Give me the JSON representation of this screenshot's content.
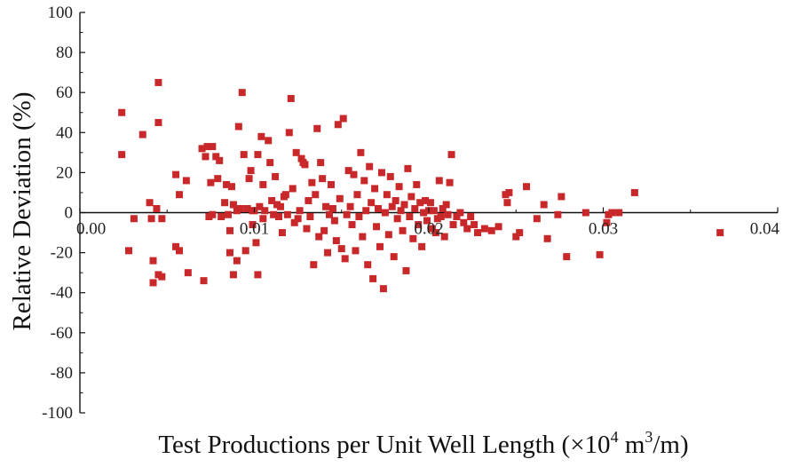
{
  "chart_data": {
    "type": "scatter",
    "title": "",
    "xlabel": {
      "text": "Test Productions per Unit Well Length (×10",
      "sup1": "4",
      "mid": " m",
      "sup2": "3",
      "end": "/m)"
    },
    "ylabel": "Relative Deviation (%)",
    "xlim": [
      0,
      0.04
    ],
    "ylim": [
      -100,
      100
    ],
    "xticks": [
      "0.00",
      "0.01",
      "0.02",
      "0.03",
      "0.04"
    ],
    "yticks": [
      "100",
      "80",
      "60",
      "40",
      "20",
      "0",
      "-20",
      "-40",
      "-60",
      "-80",
      "-100"
    ],
    "grid": false,
    "reference_line": 0,
    "marker_color": "#c8282a",
    "points": [
      [
        0.0024,
        50
      ],
      [
        0.0024,
        29
      ],
      [
        0.0028,
        -19
      ],
      [
        0.0031,
        -3
      ],
      [
        0.0036,
        39
      ],
      [
        0.004,
        5
      ],
      [
        0.0041,
        -3
      ],
      [
        0.0042,
        -24
      ],
      [
        0.0042,
        -35
      ],
      [
        0.0044,
        2
      ],
      [
        0.0045,
        65
      ],
      [
        0.0045,
        45
      ],
      [
        0.0045,
        -31
      ],
      [
        0.0047,
        -32
      ],
      [
        0.0047,
        -3
      ],
      [
        0.0055,
        19
      ],
      [
        0.0055,
        -17
      ],
      [
        0.0057,
        -19
      ],
      [
        0.0057,
        9
      ],
      [
        0.0061,
        16
      ],
      [
        0.0062,
        -30
      ],
      [
        0.007,
        32
      ],
      [
        0.0071,
        -34
      ],
      [
        0.0072,
        28
      ],
      [
        0.0073,
        33
      ],
      [
        0.0074,
        -2
      ],
      [
        0.0075,
        15
      ],
      [
        0.0076,
        -1
      ],
      [
        0.0076,
        33
      ],
      [
        0.0078,
        28
      ],
      [
        0.0079,
        17
      ],
      [
        0.008,
        26
      ],
      [
        0.0081,
        -2
      ],
      [
        0.0083,
        5
      ],
      [
        0.0084,
        14
      ],
      [
        0.0085,
        -1
      ],
      [
        0.0086,
        -9
      ],
      [
        0.0086,
        -20
      ],
      [
        0.0087,
        13
      ],
      [
        0.0088,
        -31
      ],
      [
        0.0088,
        4
      ],
      [
        0.009,
        1
      ],
      [
        0.009,
        -24
      ],
      [
        0.0091,
        43
      ],
      [
        0.0092,
        2
      ],
      [
        0.0093,
        60
      ],
      [
        0.0094,
        29
      ],
      [
        0.0095,
        -19
      ],
      [
        0.0096,
        2
      ],
      [
        0.0097,
        17
      ],
      [
        0.0098,
        21
      ],
      [
        0.0099,
        1
      ],
      [
        0.0099,
        -6
      ],
      [
        0.01,
        1
      ],
      [
        0.0101,
        -15
      ],
      [
        0.0102,
        29
      ],
      [
        0.0102,
        -31
      ],
      [
        0.0103,
        3
      ],
      [
        0.0104,
        38
      ],
      [
        0.0105,
        14
      ],
      [
        0.0105,
        -3
      ],
      [
        0.0106,
        1
      ],
      [
        0.0108,
        36
      ],
      [
        0.0109,
        25
      ],
      [
        0.011,
        6
      ],
      [
        0.0111,
        -1
      ],
      [
        0.0112,
        18
      ],
      [
        0.0113,
        4
      ],
      [
        0.0114,
        -2
      ],
      [
        0.0115,
        3
      ],
      [
        0.0116,
        -10
      ],
      [
        0.0117,
        8
      ],
      [
        0.0118,
        9
      ],
      [
        0.0119,
        -1
      ],
      [
        0.012,
        40
      ],
      [
        0.0121,
        57
      ],
      [
        0.0122,
        12
      ],
      [
        0.0123,
        -5
      ],
      [
        0.0124,
        30
      ],
      [
        0.0125,
        -3
      ],
      [
        0.0126,
        1
      ],
      [
        0.0127,
        27
      ],
      [
        0.0128,
        25
      ],
      [
        0.0129,
        24
      ],
      [
        0.013,
        -8
      ],
      [
        0.0131,
        6
      ],
      [
        0.0132,
        -2
      ],
      [
        0.0133,
        15
      ],
      [
        0.0134,
        -26
      ],
      [
        0.0135,
        9
      ],
      [
        0.0136,
        42
      ],
      [
        0.0137,
        -12
      ],
      [
        0.0138,
        25
      ],
      [
        0.0139,
        17
      ],
      [
        0.014,
        -9
      ],
      [
        0.0141,
        3
      ],
      [
        0.0142,
        -20
      ],
      [
        0.0143,
        -1
      ],
      [
        0.0144,
        14
      ],
      [
        0.0145,
        2
      ],
      [
        0.0146,
        -4
      ],
      [
        0.0147,
        -14
      ],
      [
        0.0148,
        44
      ],
      [
        0.0149,
        7
      ],
      [
        0.015,
        -18
      ],
      [
        0.0151,
        47
      ],
      [
        0.0152,
        -23
      ],
      [
        0.0153,
        -1
      ],
      [
        0.0154,
        21
      ],
      [
        0.0155,
        3
      ],
      [
        0.0156,
        -6
      ],
      [
        0.0157,
        19
      ],
      [
        0.0158,
        -19
      ],
      [
        0.0159,
        9
      ],
      [
        0.016,
        -2
      ],
      [
        0.0161,
        30
      ],
      [
        0.0162,
        -12
      ],
      [
        0.0163,
        16
      ],
      [
        0.0164,
        1
      ],
      [
        0.0165,
        -26
      ],
      [
        0.0166,
        23
      ],
      [
        0.0167,
        5
      ],
      [
        0.0168,
        -33
      ],
      [
        0.0169,
        12
      ],
      [
        0.017,
        -7
      ],
      [
        0.0171,
        2
      ],
      [
        0.0172,
        -17
      ],
      [
        0.0173,
        20
      ],
      [
        0.0174,
        -38
      ],
      [
        0.0175,
        0
      ],
      [
        0.0176,
        9
      ],
      [
        0.0177,
        -11
      ],
      [
        0.0178,
        18
      ],
      [
        0.0179,
        3
      ],
      [
        0.018,
        -22
      ],
      [
        0.0181,
        6
      ],
      [
        0.0182,
        -3
      ],
      [
        0.0183,
        13
      ],
      [
        0.0184,
        1
      ],
      [
        0.0185,
        -9
      ],
      [
        0.0186,
        4
      ],
      [
        0.0187,
        -29
      ],
      [
        0.0188,
        22
      ],
      [
        0.0189,
        -2
      ],
      [
        0.019,
        8
      ],
      [
        0.0191,
        -13
      ],
      [
        0.0192,
        2
      ],
      [
        0.0193,
        14
      ],
      [
        0.0194,
        -6
      ],
      [
        0.0195,
        5
      ],
      [
        0.0196,
        -17
      ],
      [
        0.0197,
        0
      ],
      [
        0.0198,
        6
      ],
      [
        0.0199,
        -4
      ],
      [
        0.02,
        1
      ],
      [
        0.0201,
        5
      ],
      [
        0.0202,
        -8
      ],
      [
        0.0203,
        1
      ],
      [
        0.0204,
        -10
      ],
      [
        0.0205,
        -3
      ],
      [
        0.0206,
        16
      ],
      [
        0.0207,
        -2
      ],
      [
        0.0208,
        2
      ],
      [
        0.0209,
        -12
      ],
      [
        0.021,
        4
      ],
      [
        0.0211,
        -1
      ],
      [
        0.0212,
        15
      ],
      [
        0.0213,
        29
      ],
      [
        0.0214,
        -6
      ],
      [
        0.0216,
        -2
      ],
      [
        0.0218,
        0
      ],
      [
        0.022,
        -5
      ],
      [
        0.0222,
        -8
      ],
      [
        0.0224,
        -2
      ],
      [
        0.0226,
        -6
      ],
      [
        0.0228,
        -10
      ],
      [
        0.0232,
        -8
      ],
      [
        0.0236,
        -9
      ],
      [
        0.024,
        -7
      ],
      [
        0.0244,
        9
      ],
      [
        0.0245,
        5
      ],
      [
        0.0246,
        10
      ],
      [
        0.025,
        -12
      ],
      [
        0.0252,
        -10
      ],
      [
        0.0256,
        13
      ],
      [
        0.0262,
        -3
      ],
      [
        0.0266,
        4
      ],
      [
        0.0268,
        -13
      ],
      [
        0.0274,
        -1
      ],
      [
        0.0276,
        8
      ],
      [
        0.0279,
        -22
      ],
      [
        0.029,
        0
      ],
      [
        0.0298,
        -21
      ],
      [
        0.0302,
        -5
      ],
      [
        0.0303,
        -1
      ],
      [
        0.0305,
        0
      ],
      [
        0.0309,
        0
      ],
      [
        0.0318,
        10
      ],
      [
        0.0367,
        -10
      ]
    ]
  }
}
